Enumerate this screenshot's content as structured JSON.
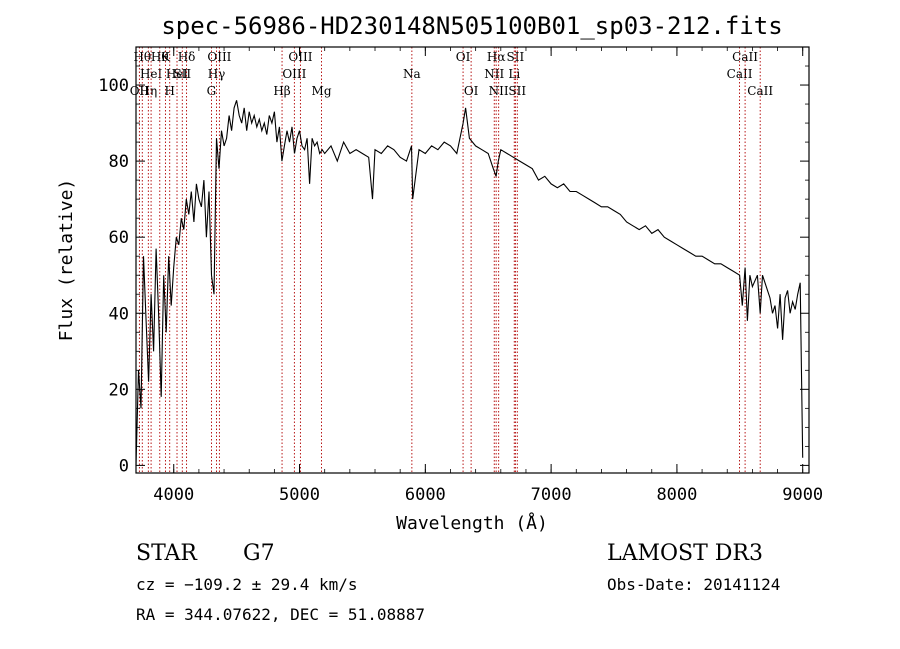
{
  "chart_data": {
    "type": "line",
    "title": "spec-56986-HD230148N505100B01_sp03-212.fits",
    "xlabel": "Wavelength (Å)",
    "ylabel": "Flux (relative)",
    "xlim": [
      3700,
      9050
    ],
    "ylim": [
      -2,
      110
    ],
    "x_ticks": [
      4000,
      5000,
      6000,
      7000,
      8000,
      9000
    ],
    "y_ticks": [
      0,
      20,
      40,
      60,
      80,
      100
    ],
    "grid": false,
    "series": [
      {
        "x": [
          3700,
          3720,
          3740,
          3760,
          3780,
          3800,
          3820,
          3840,
          3860,
          3880,
          3900,
          3920,
          3940,
          3960,
          3980,
          4000,
          4020,
          4040,
          4060,
          4080,
          4100,
          4120,
          4140,
          4160,
          4180,
          4200,
          4220,
          4240,
          4260,
          4280,
          4300,
          4320,
          4340,
          4360,
          4380,
          4400,
          4420,
          4440,
          4460,
          4480,
          4500,
          4520,
          4540,
          4560,
          4580,
          4600,
          4620,
          4640,
          4660,
          4680,
          4700,
          4720,
          4740,
          4760,
          4780,
          4800,
          4820,
          4840,
          4860,
          4880,
          4900,
          4920,
          4940,
          4960,
          4980,
          5000,
          5020,
          5040,
          5060,
          5080,
          5100,
          5120,
          5140,
          5160,
          5180,
          5200,
          5250,
          5300,
          5350,
          5400,
          5450,
          5500,
          5550,
          5580,
          5600,
          5650,
          5700,
          5750,
          5800,
          5850,
          5890,
          5900,
          5950,
          6000,
          6050,
          6100,
          6150,
          6200,
          6250,
          6300,
          6320,
          6350,
          6400,
          6450,
          6500,
          6540,
          6563,
          6580,
          6600,
          6650,
          6700,
          6750,
          6800,
          6850,
          6900,
          6950,
          7000,
          7050,
          7100,
          7150,
          7200,
          7250,
          7300,
          7350,
          7400,
          7450,
          7500,
          7550,
          7600,
          7650,
          7700,
          7750,
          7800,
          7850,
          7900,
          7950,
          8000,
          8050,
          8100,
          8150,
          8200,
          8250,
          8300,
          8350,
          8400,
          8450,
          8498,
          8520,
          8542,
          8560,
          8580,
          8600,
          8640,
          8662,
          8680,
          8700,
          8720,
          8740,
          8760,
          8780,
          8800,
          8820,
          8840,
          8860,
          8880,
          8900,
          8920,
          8940,
          8960,
          8980,
          9000
        ],
        "y": [
          0,
          25,
          15,
          55,
          38,
          22,
          45,
          30,
          57,
          40,
          18,
          50,
          35,
          55,
          42,
          52,
          60,
          58,
          65,
          62,
          70,
          66,
          72,
          64,
          74,
          70,
          68,
          75,
          60,
          72,
          50,
          45,
          86,
          78,
          88,
          84,
          86,
          92,
          88,
          94,
          96,
          92,
          90,
          94,
          88,
          93,
          90,
          92,
          89,
          91,
          88,
          90,
          87,
          92,
          90,
          93,
          85,
          89,
          80,
          84,
          88,
          85,
          89,
          82,
          86,
          88,
          84,
          83,
          86,
          74,
          86,
          84,
          85,
          82,
          83,
          82,
          84,
          80,
          85,
          82,
          83,
          82,
          81,
          70,
          83,
          82,
          84,
          83,
          81,
          80,
          84,
          70,
          83,
          82,
          84,
          83,
          85,
          84,
          82,
          90,
          94,
          86,
          84,
          83,
          82,
          78,
          76,
          80,
          83,
          82,
          81,
          80,
          79,
          78,
          75,
          76,
          74,
          73,
          74,
          72,
          72,
          71,
          70,
          69,
          68,
          68,
          67,
          66,
          64,
          63,
          62,
          63,
          61,
          62,
          60,
          59,
          58,
          57,
          56,
          55,
          55,
          54,
          53,
          53,
          52,
          51,
          50,
          42,
          52,
          38,
          50,
          47,
          50,
          40,
          50,
          48,
          46,
          44,
          40,
          42,
          36,
          45,
          33,
          44,
          46,
          40,
          43,
          41,
          45,
          48,
          2
        ]
      }
    ],
    "lines": [
      {
        "w": 3727,
        "label": "OII",
        "row": 3
      },
      {
        "w": 3750,
        "label": "Hθ",
        "row": 1
      },
      {
        "w": 3798,
        "label": "Hη",
        "row": 3
      },
      {
        "w": 3820,
        "label": "HeI",
        "row": 2
      },
      {
        "w": 3889,
        "label": "Hθ",
        "row": 1
      },
      {
        "w": 3934,
        "label": "K",
        "row": 1
      },
      {
        "w": 3968,
        "label": "H",
        "row": 3
      },
      {
        "w": 4026,
        "label": "HeI",
        "row": 2
      },
      {
        "w": 4068,
        "label": "SII",
        "row": 2
      },
      {
        "w": 4102,
        "label": "Hδ",
        "row": 1
      },
      {
        "w": 4300,
        "label": "G",
        "row": 3
      },
      {
        "w": 4340,
        "label": "Hγ",
        "row": 2
      },
      {
        "w": 4363,
        "label": "OIII",
        "row": 1
      },
      {
        "w": 4861,
        "label": "Hβ",
        "row": 3
      },
      {
        "w": 4959,
        "label": "OIII",
        "row": 2
      },
      {
        "w": 5007,
        "label": "OIII",
        "row": 1
      },
      {
        "w": 5175,
        "label": "Mg",
        "row": 3
      },
      {
        "w": 5893,
        "label": "Na",
        "row": 2
      },
      {
        "w": 6300,
        "label": "OI",
        "row": 1
      },
      {
        "w": 6364,
        "label": "OI",
        "row": 3
      },
      {
        "w": 6548,
        "label": "NII",
        "row": 2
      },
      {
        "w": 6563,
        "label": "Hα",
        "row": 1
      },
      {
        "w": 6583,
        "label": "NII",
        "row": 3
      },
      {
        "w": 6707,
        "label": "Li",
        "row": 2
      },
      {
        "w": 6716,
        "label": "SII",
        "row": 1
      },
      {
        "w": 6731,
        "label": "SII",
        "row": 3
      },
      {
        "w": 8498,
        "label": "CaII",
        "row": 2
      },
      {
        "w": 8542,
        "label": "CaII",
        "row": 1
      },
      {
        "w": 8662,
        "label": "CaII",
        "row": 3
      }
    ]
  },
  "info": {
    "object_class": "STAR",
    "subclass": "G7",
    "survey": "LAMOST DR3",
    "cz": "cz = −109.2 ± 29.4 km/s",
    "obs_date": "Obs-Date: 20141124",
    "coords": "RA = 344.07622, DEC =  51.08887"
  }
}
